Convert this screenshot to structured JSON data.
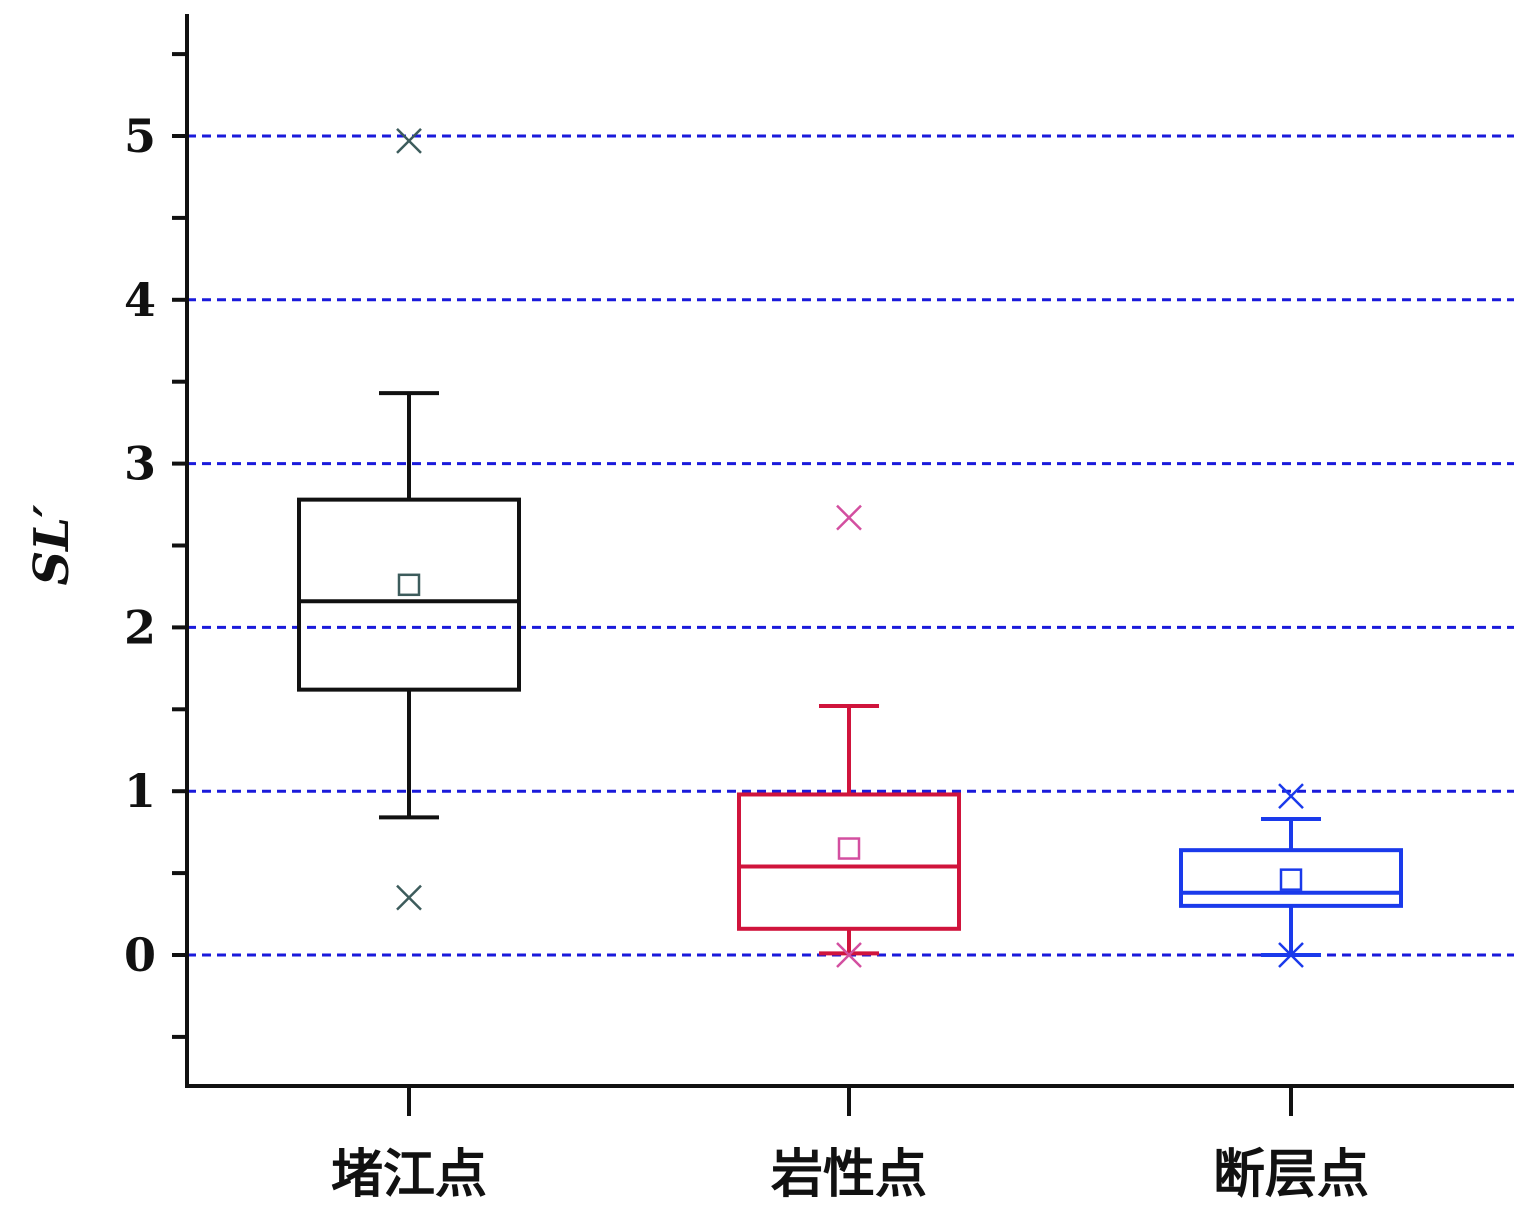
{
  "chart_data": {
    "type": "box",
    "title": "",
    "xlabel": "",
    "ylabel": "SL′",
    "ylim": [
      -0.8,
      5.75
    ],
    "yticks": [
      0,
      1,
      2,
      3,
      4,
      5
    ],
    "grid": {
      "horizontal": true,
      "style": "dashed",
      "color": "#1a1adb"
    },
    "categories": [
      "堵江点",
      "岩性点",
      "断层点"
    ],
    "series": [
      {
        "category": "堵江点",
        "color": "#111111",
        "outlier_color": "#3d5c5c",
        "whisker_low": 0.84,
        "q1": 1.62,
        "median": 2.16,
        "q3": 2.78,
        "whisker_high": 3.43,
        "mean": 2.26,
        "extremes": [
          4.97,
          0.35
        ]
      },
      {
        "category": "岩性点",
        "color": "#d0143c",
        "outlier_color": "#d34fa0",
        "whisker_low": 0.01,
        "q1": 0.16,
        "median": 0.54,
        "q3": 0.98,
        "whisker_high": 1.52,
        "mean": 0.65,
        "extremes": [
          2.67,
          0.0
        ]
      },
      {
        "category": "断层点",
        "color": "#1a3aeb",
        "outlier_color": "#1a3aeb",
        "whisker_low": 0.0,
        "q1": 0.3,
        "median": 0.38,
        "q3": 0.64,
        "whisker_high": 0.83,
        "mean": 0.46,
        "extremes": [
          0.97,
          0.0
        ]
      }
    ]
  }
}
